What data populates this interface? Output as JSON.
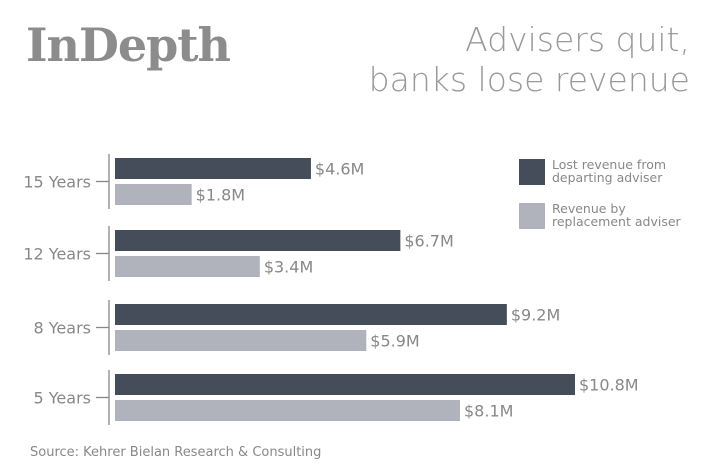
{
  "chart_data": {
    "type": "bar",
    "orientation": "horizontal",
    "brand": "InDepth",
    "title_lines": [
      "Advisers quit,",
      "banks lose revenue"
    ],
    "source": "Source: Kehrer Bielan Research & Consulting",
    "categories": [
      "15 Years",
      "12 Years",
      "8 Years",
      "5 Years"
    ],
    "series": [
      {
        "name": "Lost revenue from departing adviser",
        "legend_lines": [
          "Lost revenue from",
          "departing adviser"
        ],
        "color": "#454c5a",
        "values": [
          4.6,
          6.7,
          9.2,
          10.8
        ],
        "labels": [
          "$4.6M",
          "$6.7M",
          "$9.2M",
          "$10.8M"
        ]
      },
      {
        "name": "Revenue by replacement adviser",
        "legend_lines": [
          "Revenue by",
          "replacement adviser"
        ],
        "color": "#b0b3bb",
        "values": [
          1.8,
          3.4,
          5.9,
          8.1
        ],
        "labels": [
          "$1.8M",
          "$3.4M",
          "$5.9M",
          "$8.1M"
        ]
      }
    ],
    "units": "$M",
    "xlim": [
      0,
      10.8
    ],
    "grid": false,
    "legend_position": "top-right"
  }
}
